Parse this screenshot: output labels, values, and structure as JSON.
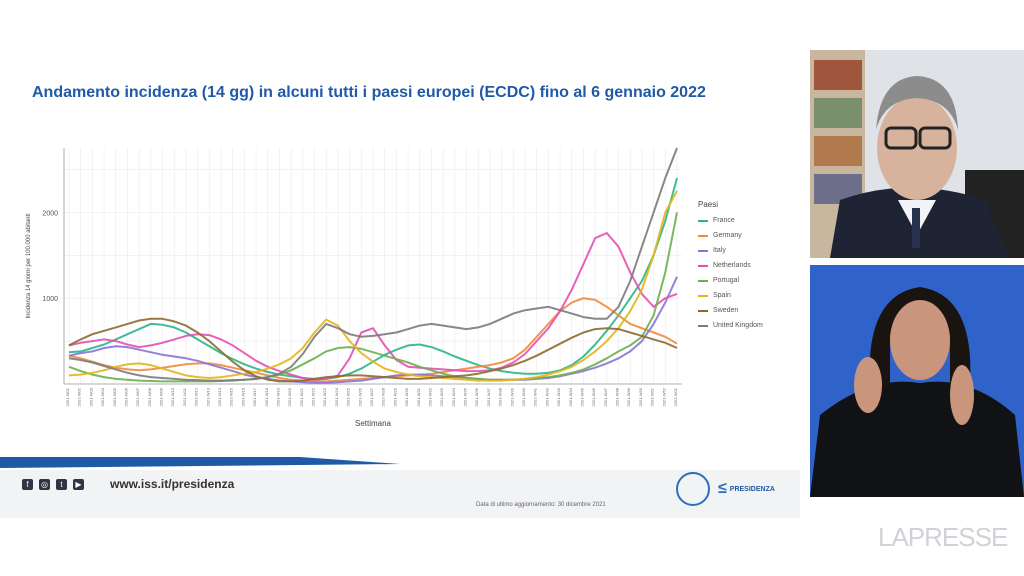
{
  "slide": {
    "title": "Andamento incidenza (14 gg) in alcuni tutti i paesi europei (ECDC) fino al 6 gennaio 2022",
    "footer": {
      "url": "www.iss.it/presidenza",
      "update_note": "Data di ultimo aggiornamento: 30 dicembre 2021",
      "logo_text": "PRESIDENZA",
      "social_icons": [
        "facebook-icon",
        "instagram-icon",
        "twitter-icon",
        "youtube-icon"
      ]
    },
    "accent_color": "#1f5aa6"
  },
  "watermark": "LAPRESSE",
  "chart_data": {
    "type": "line",
    "title": "Andamento incidenza (14 gg) in alcuni tutti i paesi europei (ECDC) fino al 6 gennaio 2022",
    "xlabel": "Settimana",
    "ylabel": "Incidenza 14 giorni per 100.000 abitanti",
    "ylim": [
      0,
      2750
    ],
    "yticks": [
      1000,
      2000
    ],
    "grid": true,
    "legend_title": "Paesi",
    "legend_position": "right",
    "x": [
      "2021-W01",
      "2021-W02",
      "2021-W03",
      "2021-W04",
      "2021-W05",
      "2021-W06",
      "2021-W07",
      "2021-W08",
      "2021-W09",
      "2021-W10",
      "2021-W11",
      "2021-W12",
      "2021-W13",
      "2021-W14",
      "2021-W15",
      "2021-W16",
      "2021-W17",
      "2021-W18",
      "2021-W19",
      "2021-W20",
      "2021-W21",
      "2021-W22",
      "2021-W23",
      "2021-W24",
      "2021-W25",
      "2021-W26",
      "2021-W27",
      "2021-W28",
      "2021-W29",
      "2021-W30",
      "2021-W31",
      "2021-W32",
      "2021-W33",
      "2021-W34",
      "2021-W35",
      "2021-W36",
      "2021-W37",
      "2021-W38",
      "2021-W39",
      "2021-W40",
      "2021-W41",
      "2021-W42",
      "2021-W43",
      "2021-W44",
      "2021-W45",
      "2021-W46",
      "2021-W47",
      "2021-W48",
      "2021-W49",
      "2021-W50",
      "2021-W51",
      "2021-W52",
      "2022-W01"
    ],
    "series": [
      {
        "name": "France",
        "color": "#2bb58a",
        "values": [
          370,
          380,
          420,
          460,
          520,
          580,
          640,
          700,
          690,
          660,
          600,
          520,
          440,
          360,
          290,
          230,
          180,
          140,
          110,
          90,
          70,
          60,
          60,
          80,
          120,
          180,
          260,
          340,
          400,
          450,
          460,
          430,
          380,
          320,
          270,
          220,
          180,
          150,
          130,
          120,
          120,
          130,
          160,
          220,
          320,
          460,
          620,
          800,
          1000,
          1200,
          1500,
          1900,
          2400
        ]
      },
      {
        "name": "Germany",
        "color": "#f08a3c",
        "values": [
          330,
          300,
          260,
          220,
          190,
          170,
          160,
          170,
          190,
          210,
          230,
          240,
          240,
          220,
          190,
          160,
          130,
          100,
          70,
          50,
          40,
          30,
          30,
          40,
          50,
          60,
          70,
          80,
          90,
          100,
          110,
          120,
          140,
          160,
          180,
          200,
          220,
          250,
          300,
          400,
          550,
          700,
          850,
          950,
          1000,
          980,
          900,
          800,
          700,
          650,
          600,
          550,
          470
        ]
      },
      {
        "name": "Italy",
        "color": "#8a72d8",
        "values": [
          330,
          360,
          380,
          420,
          440,
          430,
          400,
          370,
          340,
          320,
          300,
          270,
          230,
          190,
          150,
          110,
          80,
          60,
          40,
          30,
          20,
          15,
          15,
          20,
          30,
          40,
          60,
          80,
          100,
          110,
          110,
          100,
          90,
          80,
          70,
          60,
          50,
          50,
          50,
          50,
          60,
          70,
          90,
          120,
          150,
          190,
          240,
          300,
          380,
          500,
          700,
          950,
          1250
        ]
      },
      {
        "name": "Netherlands",
        "color": "#e54fb2",
        "values": [
          450,
          480,
          500,
          520,
          500,
          460,
          430,
          450,
          480,
          520,
          560,
          580,
          570,
          520,
          450,
          360,
          270,
          200,
          150,
          110,
          70,
          50,
          60,
          100,
          300,
          600,
          650,
          450,
          280,
          200,
          190,
          180,
          170,
          160,
          150,
          150,
          160,
          190,
          250,
          350,
          500,
          650,
          850,
          1100,
          1400,
          1700,
          1760,
          1600,
          1300,
          1050,
          900,
          1000,
          1050
        ]
      },
      {
        "name": "Portugal",
        "color": "#6ab04c",
        "values": [
          200,
          150,
          110,
          80,
          60,
          50,
          40,
          35,
          30,
          30,
          30,
          30,
          30,
          35,
          40,
          50,
          60,
          80,
          110,
          160,
          230,
          300,
          380,
          420,
          430,
          410,
          370,
          330,
          290,
          250,
          200,
          160,
          120,
          90,
          70,
          60,
          50,
          50,
          50,
          60,
          70,
          80,
          100,
          130,
          170,
          230,
          300,
          380,
          450,
          550,
          800,
          1300,
          2000
        ]
      },
      {
        "name": "Spain",
        "color": "#e5b51a",
        "values": [
          100,
          110,
          130,
          160,
          200,
          230,
          240,
          220,
          180,
          140,
          100,
          80,
          70,
          80,
          100,
          120,
          140,
          180,
          230,
          300,
          420,
          600,
          750,
          680,
          500,
          360,
          260,
          180,
          140,
          110,
          90,
          80,
          70,
          60,
          50,
          40,
          40,
          40,
          50,
          60,
          80,
          110,
          150,
          200,
          280,
          380,
          500,
          650,
          850,
          1100,
          1500,
          2000,
          2250
        ]
      },
      {
        "name": "Sweden",
        "color": "#8d6b2e",
        "values": [
          450,
          520,
          580,
          620,
          660,
          700,
          740,
          760,
          760,
          730,
          680,
          600,
          500,
          380,
          260,
          160,
          90,
          50,
          30,
          30,
          40,
          60,
          80,
          90,
          100,
          100,
          90,
          80,
          70,
          60,
          60,
          70,
          80,
          90,
          100,
          120,
          150,
          180,
          220,
          270,
          330,
          400,
          470,
          540,
          600,
          640,
          650,
          640,
          600,
          560,
          520,
          480,
          420
        ]
      },
      {
        "name": "United Kingdom",
        "color": "#7b7b7b",
        "values": [
          300,
          280,
          250,
          210,
          170,
          130,
          100,
          80,
          70,
          60,
          50,
          45,
          40,
          40,
          45,
          50,
          60,
          80,
          120,
          200,
          350,
          550,
          700,
          650,
          580,
          550,
          560,
          580,
          600,
          640,
          680,
          700,
          680,
          660,
          640,
          660,
          700,
          760,
          820,
          860,
          880,
          900,
          860,
          820,
          780,
          760,
          760,
          900,
          1200,
          1600,
          2000,
          2400,
          2750
        ]
      }
    ]
  }
}
